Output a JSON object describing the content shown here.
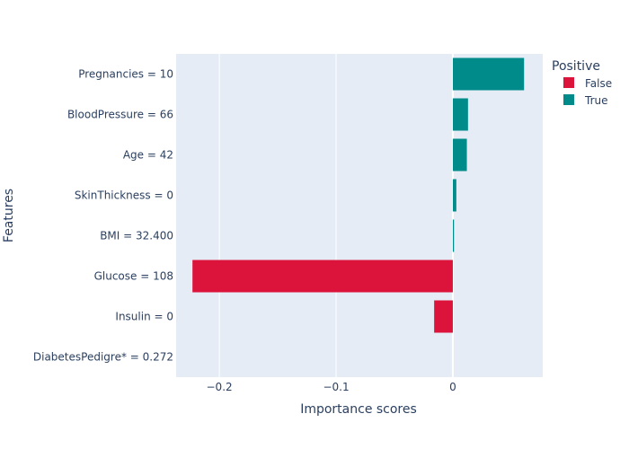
{
  "chart_data": {
    "type": "bar",
    "orientation": "horizontal",
    "categories": [
      "Pregnancies = 10",
      "BloodPressure = 66",
      "Age = 42",
      "SkinThickness = 0",
      "BMI = 32.400",
      "Glucose = 108",
      "Insulin = 0",
      "DiabetesPedigre* = 0.272"
    ],
    "values": [
      0.061,
      0.013,
      0.012,
      0.003,
      0.001,
      -0.223,
      -0.016,
      0.0
    ],
    "xlabel": "Importance scores",
    "ylabel": "Features",
    "xlim": [
      -0.237,
      0.077
    ],
    "x_ticks": [
      -0.2,
      -0.1,
      0
    ],
    "x_tick_labels": [
      "−0.2",
      "−0.1",
      "0"
    ],
    "grid": true,
    "legend": {
      "title": "Positive",
      "position": "top-right",
      "entries": [
        {
          "label": "False",
          "color": "#dc143c"
        },
        {
          "label": "True",
          "color": "#008b8b"
        }
      ]
    },
    "colors": {
      "positive": "#008b8b",
      "negative": "#dc143c",
      "plot_bg": "#e5ecf6"
    }
  }
}
